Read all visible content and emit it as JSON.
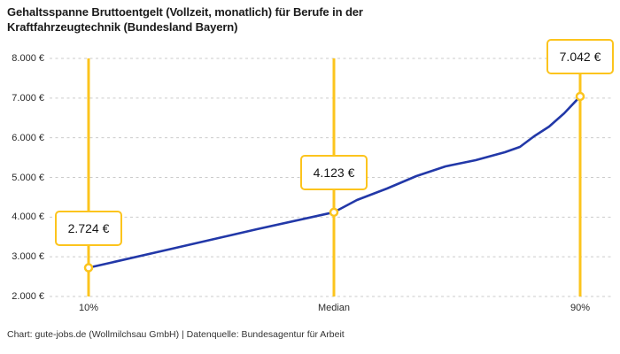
{
  "footer": {
    "text": "Chart: gute-jobs.de (Wollmilchsau GmbH) | Datenquelle: Bundesagentur für Arbeit"
  },
  "chart_data": {
    "type": "line",
    "title": "Gehaltsspanne Bruttoentgelt (Vollzeit, monatlich) für Berufe in der Kraftfahrzeugtechnik (Bundesland Bayern)",
    "categories": [
      "10%",
      "Median",
      "90%"
    ],
    "series": [
      {
        "name": "Bruttoentgelt",
        "values": [
          2724,
          4123,
          7042
        ]
      }
    ],
    "value_labels": [
      "2.724 €",
      "4.123 €",
      "7.042 €"
    ],
    "yticks": [
      {
        "value": 8000,
        "label": "8.000 €"
      },
      {
        "value": 7000,
        "label": "7.000 €"
      },
      {
        "value": 6000,
        "label": "6.000 €"
      },
      {
        "value": 5000,
        "label": "5.000 €"
      },
      {
        "value": 4000,
        "label": "4.000 €"
      },
      {
        "value": 3000,
        "label": "3.000 €"
      },
      {
        "value": 2000,
        "label": "2.000 €"
      }
    ],
    "ylim": [
      2000,
      8000
    ],
    "xlabel": "",
    "ylabel": "",
    "grid": "horizontal-dashed",
    "legend": "none",
    "colors": {
      "line": "#2238a8",
      "accent": "#fcc41d",
      "grid": "#cbcbcb",
      "title_text": "#1a1a1a",
      "background": "#ffffff"
    }
  }
}
